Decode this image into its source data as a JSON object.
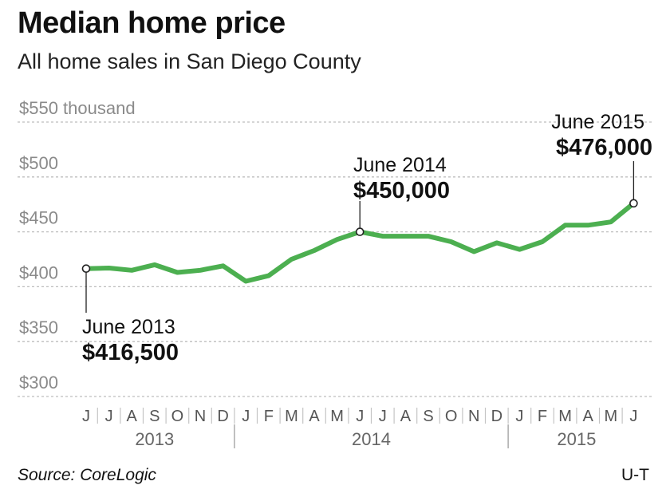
{
  "header": {
    "title": "Median home price",
    "subtitle": "All home sales in San Diego County"
  },
  "footer": {
    "source": "Source: CoreLogic",
    "credit": "U-T"
  },
  "colors": {
    "line": "#4caf50",
    "grid": "#bdbdbd",
    "tick_text": "#8a8a8a"
  },
  "chart_data": {
    "type": "line",
    "title": "Median home price",
    "subtitle": "All home sales in San Diego County",
    "xlabel": "",
    "ylabel": "",
    "ylim": [
      300,
      550
    ],
    "yticks": [
      300,
      350,
      400,
      450,
      500,
      550
    ],
    "ytick_labels": [
      "$300",
      "$350",
      "$400",
      "$450",
      "$500",
      "$550 thousand"
    ],
    "grid": true,
    "x": [
      "J",
      "J",
      "A",
      "S",
      "O",
      "N",
      "D",
      "J",
      "F",
      "M",
      "A",
      "M",
      "J",
      "J",
      "A",
      "S",
      "O",
      "N",
      "D",
      "J",
      "F",
      "M",
      "A",
      "M",
      "J"
    ],
    "years": [
      {
        "label": "2013",
        "start": 0,
        "end": 6
      },
      {
        "label": "2014",
        "start": 7,
        "end": 18
      },
      {
        "label": "2015",
        "start": 19,
        "end": 24
      }
    ],
    "series": [
      {
        "values": [
          416.5,
          417,
          415,
          420,
          413,
          415,
          419,
          405,
          410,
          425,
          433,
          443,
          450,
          446,
          446,
          446,
          441,
          432,
          440,
          434,
          441,
          456,
          456,
          459,
          476
        ]
      }
    ],
    "annotations": [
      {
        "index": 0,
        "date": "June 2013",
        "value": "$416,500",
        "placement": "below"
      },
      {
        "index": 12,
        "date": "June 2014",
        "value": "$450,000",
        "placement": "above"
      },
      {
        "index": 24,
        "date": "June 2015",
        "value": "$476,000",
        "placement": "above"
      }
    ]
  }
}
